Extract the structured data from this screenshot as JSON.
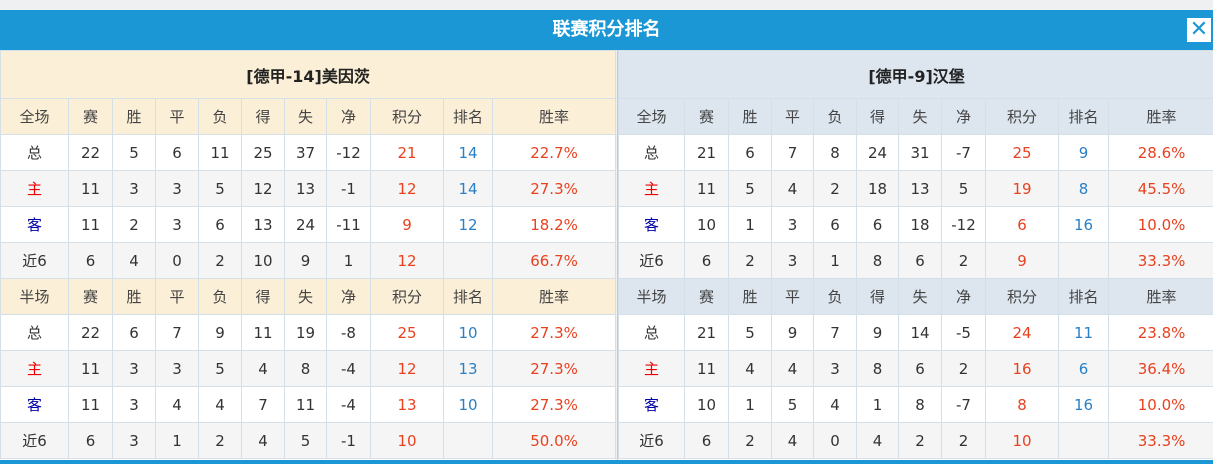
{
  "title": "联赛积分排名",
  "close_icon": "close-icon",
  "colors": {
    "accent": "#1b97d5",
    "points": "#e8411f",
    "rank": "#2a7fc6",
    "home": "#e00000",
    "away": "#0000a8"
  },
  "columns": [
    "赛",
    "胜",
    "平",
    "负",
    "得",
    "失",
    "净",
    "积分",
    "排名",
    "胜率"
  ],
  "teams": [
    {
      "name": "[德甲-14]美因茨",
      "full": {
        "label": "全场",
        "rows": [
          [
            "总",
            "22",
            "5",
            "6",
            "11",
            "25",
            "37",
            "-12",
            "21",
            "14",
            "22.7%"
          ],
          [
            "主",
            "11",
            "3",
            "3",
            "5",
            "12",
            "13",
            "-1",
            "12",
            "14",
            "27.3%"
          ],
          [
            "客",
            "11",
            "2",
            "3",
            "6",
            "13",
            "24",
            "-11",
            "9",
            "12",
            "18.2%"
          ],
          [
            "近6",
            "6",
            "4",
            "0",
            "2",
            "10",
            "9",
            "1",
            "12",
            "",
            "66.7%"
          ]
        ]
      },
      "half": {
        "label": "半场",
        "rows": [
          [
            "总",
            "22",
            "6",
            "7",
            "9",
            "11",
            "19",
            "-8",
            "25",
            "10",
            "27.3%"
          ],
          [
            "主",
            "11",
            "3",
            "3",
            "5",
            "4",
            "8",
            "-4",
            "12",
            "13",
            "27.3%"
          ],
          [
            "客",
            "11",
            "3",
            "4",
            "4",
            "7",
            "11",
            "-4",
            "13",
            "10",
            "27.3%"
          ],
          [
            "近6",
            "6",
            "3",
            "1",
            "2",
            "4",
            "5",
            "-1",
            "10",
            "",
            "50.0%"
          ]
        ]
      }
    },
    {
      "name": "[德甲-9]汉堡",
      "full": {
        "label": "全场",
        "rows": [
          [
            "总",
            "21",
            "6",
            "7",
            "8",
            "24",
            "31",
            "-7",
            "25",
            "9",
            "28.6%"
          ],
          [
            "主",
            "11",
            "5",
            "4",
            "2",
            "18",
            "13",
            "5",
            "19",
            "8",
            "45.5%"
          ],
          [
            "客",
            "10",
            "1",
            "3",
            "6",
            "6",
            "18",
            "-12",
            "6",
            "16",
            "10.0%"
          ],
          [
            "近6",
            "6",
            "2",
            "3",
            "1",
            "8",
            "6",
            "2",
            "9",
            "",
            "33.3%"
          ]
        ]
      },
      "half": {
        "label": "半场",
        "rows": [
          [
            "总",
            "21",
            "5",
            "9",
            "7",
            "9",
            "14",
            "-5",
            "24",
            "11",
            "23.8%"
          ],
          [
            "主",
            "11",
            "4",
            "4",
            "3",
            "8",
            "6",
            "2",
            "16",
            "6",
            "36.4%"
          ],
          [
            "客",
            "10",
            "1",
            "5",
            "4",
            "1",
            "8",
            "-7",
            "8",
            "16",
            "10.0%"
          ],
          [
            "近6",
            "6",
            "2",
            "4",
            "0",
            "4",
            "2",
            "2",
            "10",
            "",
            "33.3%"
          ]
        ]
      }
    }
  ]
}
